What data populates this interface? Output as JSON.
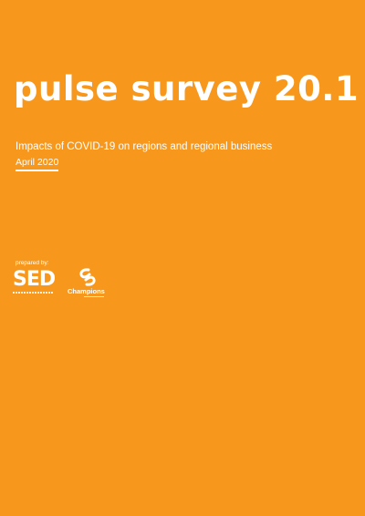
{
  "cover": {
    "title": "pulse survey 20.1",
    "subtitle": "Impacts of COVID-19 on regions and regional business",
    "date": "April 2020",
    "prepared_by_label": "prepared by:"
  },
  "logos": {
    "sed": {
      "text": "SED",
      "icon": "sed-logo"
    },
    "champions": {
      "text": "Champions",
      "icon": "champions-swirl-logo"
    }
  },
  "colors": {
    "background": "#F7981D",
    "foreground": "#FFFFFF"
  }
}
